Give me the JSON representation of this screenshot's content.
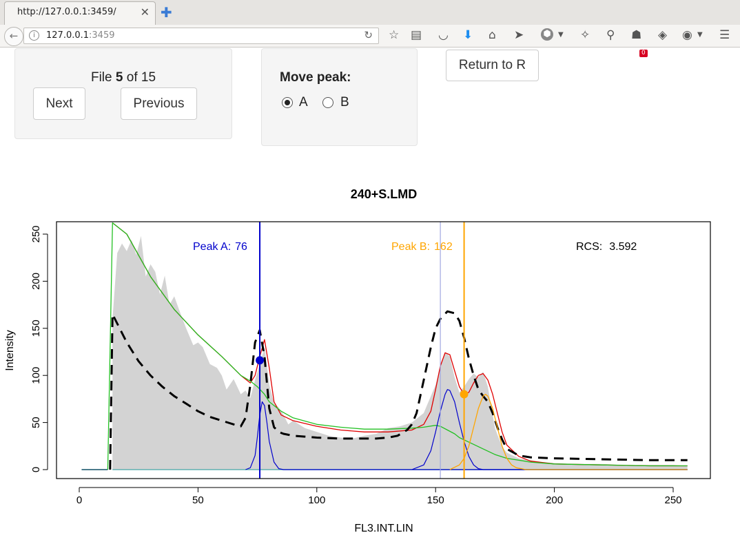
{
  "browser": {
    "tab_title": "http://127.0.0.1:3459/",
    "url_host": "127.0.0.1",
    "url_port": ":3459",
    "badge_count": "0"
  },
  "panel_file": {
    "prefix": "File ",
    "current": "5",
    "middle": " of ",
    "total": "15",
    "next_label": "Next",
    "previous_label": "Previous"
  },
  "panel_move": {
    "title": "Move peak:",
    "options": [
      "A",
      "B"
    ],
    "selected": "A"
  },
  "return_label": "Return to R",
  "chart_data": {
    "type": "area",
    "title": "240+S.LMD",
    "xlabel": "FL3.INT.LIN",
    "ylabel": "Intensity",
    "xlim": [
      0,
      256
    ],
    "ylim": [
      0,
      260
    ],
    "xticks": [
      0,
      50,
      100,
      150,
      200,
      250
    ],
    "yticks": [
      0,
      50,
      100,
      150,
      200,
      250
    ],
    "annotations": {
      "peak_a_label": "Peak A:",
      "peak_a_value": "76",
      "peak_b_label": "Peak B:",
      "peak_b_value": "162",
      "rcs_label": "RCS:",
      "rcs_value": "3.592"
    },
    "peaks": {
      "A": {
        "x": 76,
        "y": 116
      },
      "B": {
        "x": 162,
        "y": 80
      }
    },
    "reference_line_x": 152,
    "colors": {
      "histogram": "#d3d3d3",
      "peak_a": "#0000cc",
      "peak_b": "#ffa500",
      "fit_total": "#e00000",
      "background": "#22c022",
      "reference": "#a0a8e0",
      "dashed": "#000000"
    },
    "histogram": {
      "x": [
        14,
        16,
        18,
        20,
        22,
        24,
        26,
        28,
        30,
        32,
        34,
        36,
        38,
        40,
        42,
        45,
        48,
        50,
        52,
        55,
        58,
        60,
        62,
        65,
        68,
        70,
        72,
        74,
        76,
        78,
        80,
        82,
        84,
        86,
        88,
        90,
        95,
        100,
        105,
        110,
        115,
        120,
        125,
        130,
        135,
        140,
        145,
        150,
        152,
        154,
        156,
        158,
        160,
        162,
        164,
        166,
        168,
        170,
        172,
        175,
        178,
        180,
        185,
        190,
        195,
        200,
        210,
        220,
        230,
        240,
        250,
        256
      ],
      "y": [
        160,
        230,
        240,
        232,
        244,
        228,
        248,
        205,
        218,
        210,
        186,
        206,
        175,
        184,
        170,
        150,
        132,
        135,
        130,
        112,
        108,
        100,
        85,
        96,
        80,
        84,
        76,
        95,
        112,
        130,
        90,
        70,
        66,
        58,
        48,
        52,
        44,
        40,
        36,
        34,
        33,
        36,
        38,
        44,
        46,
        50,
        60,
        90,
        110,
        125,
        120,
        98,
        82,
        88,
        96,
        102,
        98,
        104,
        88,
        44,
        24,
        18,
        12,
        10,
        8,
        7,
        6,
        6,
        5,
        5,
        5,
        4
      ]
    },
    "series": [
      {
        "name": "fit",
        "x": [
          14,
          20,
          30,
          40,
          50,
          60,
          68,
          72,
          74,
          76,
          78,
          80,
          82,
          85,
          90,
          100,
          110,
          120,
          130,
          140,
          145,
          148,
          150,
          152,
          154,
          156,
          158,
          160,
          162,
          164,
          166,
          168,
          170,
          172,
          174,
          176,
          178,
          180,
          185,
          190,
          200,
          220,
          240,
          256
        ],
        "y": [
          262,
          250,
          205,
          170,
          143,
          120,
          100,
          92,
          100,
          120,
          138,
          108,
          72,
          58,
          52,
          46,
          42,
          40,
          40,
          42,
          48,
          62,
          85,
          110,
          124,
          122,
          105,
          88,
          80,
          82,
          92,
          100,
          102,
          95,
          80,
          60,
          40,
          26,
          14,
          9,
          6,
          5,
          4,
          4
        ]
      },
      {
        "name": "background",
        "x": [
          12,
          14,
          20,
          30,
          40,
          50,
          60,
          68,
          72,
          75,
          78,
          80,
          85,
          90,
          100,
          110,
          120,
          130,
          140,
          145,
          150,
          152,
          155,
          158,
          160,
          165,
          170,
          175,
          180,
          185,
          190,
          200,
          220,
          240,
          256
        ],
        "y": [
          0,
          262,
          250,
          205,
          170,
          143,
          120,
          100,
          94,
          88,
          80,
          72,
          62,
          55,
          48,
          45,
          43,
          43,
          44,
          45,
          47,
          46,
          42,
          38,
          34,
          28,
          22,
          16,
          12,
          10,
          8,
          6,
          5,
          4,
          4
        ]
      },
      {
        "name": "dashed",
        "x": [
          13,
          14,
          16,
          20,
          25,
          30,
          35,
          40,
          45,
          50,
          55,
          60,
          65,
          68,
          70,
          72,
          74,
          76,
          78,
          80,
          82,
          84,
          86,
          88,
          90,
          95,
          100,
          110,
          120,
          125,
          130,
          134,
          138,
          140,
          142,
          145,
          148,
          150,
          152,
          155,
          158,
          160,
          162,
          164,
          166,
          168,
          170,
          172,
          174,
          176,
          178,
          180,
          185,
          190,
          200,
          220,
          240,
          256
        ],
        "y": [
          0,
          165,
          155,
          135,
          115,
          100,
          88,
          78,
          70,
          62,
          56,
          52,
          48,
          46,
          55,
          90,
          135,
          148,
          120,
          65,
          45,
          40,
          38,
          37,
          36,
          35,
          34,
          33,
          33,
          33,
          34,
          36,
          42,
          48,
          60,
          95,
          130,
          150,
          160,
          168,
          166,
          158,
          140,
          118,
          100,
          85,
          78,
          72,
          60,
          45,
          32,
          22,
          15,
          13,
          12,
          11,
          10,
          10
        ]
      },
      {
        "name": "peak A",
        "x": [
          70,
          72,
          74,
          75,
          76,
          77,
          78,
          79,
          80,
          82,
          84,
          86,
          256
        ],
        "y": [
          0,
          2,
          15,
          35,
          58,
          72,
          68,
          50,
          30,
          8,
          1,
          0,
          0
        ]
      },
      {
        "name": "peak B first",
        "x": [
          140,
          145,
          148,
          150,
          152,
          154,
          155,
          156,
          158,
          160,
          162,
          164,
          166,
          168,
          170,
          180,
          256
        ],
        "y": [
          0,
          5,
          20,
          40,
          62,
          80,
          85,
          84,
          72,
          50,
          30,
          14,
          5,
          1,
          0,
          0,
          0
        ]
      },
      {
        "name": "peak B second",
        "x": [
          156,
          160,
          162,
          164,
          166,
          168,
          170,
          171,
          172,
          174,
          176,
          178,
          180,
          182,
          184,
          188,
          256
        ],
        "y": [
          0,
          5,
          12,
          25,
          45,
          65,
          78,
          80,
          78,
          65,
          45,
          25,
          12,
          5,
          2,
          0,
          0
        ]
      }
    ]
  }
}
